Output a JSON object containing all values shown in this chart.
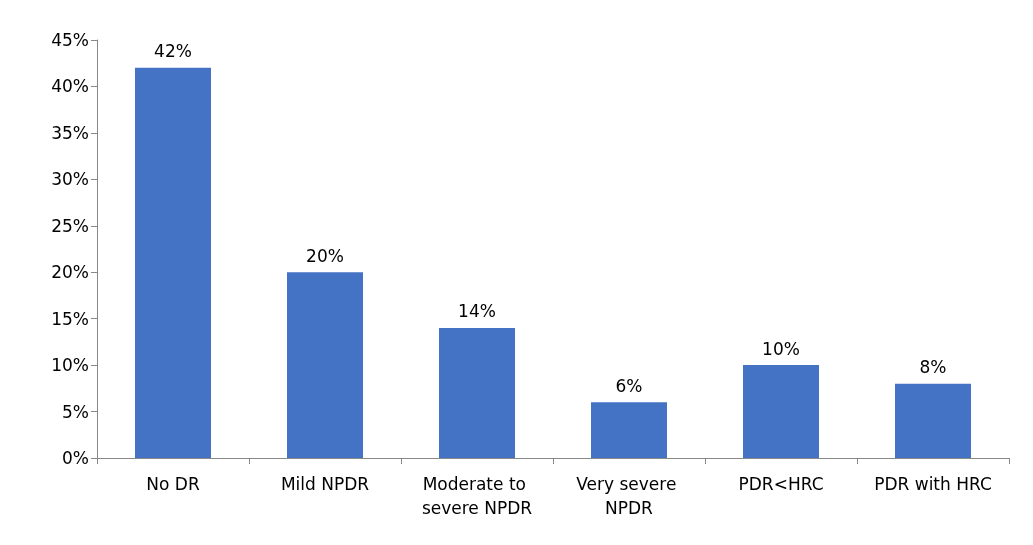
{
  "chart_data": {
    "type": "bar",
    "categories": [
      "No DR",
      "Mild NPDR",
      "Moderate to severe NPDR",
      "Very severe NPDR",
      "PDR<HRC",
      "PDR with HRC"
    ],
    "values": [
      42,
      20,
      14,
      6,
      10,
      8
    ],
    "value_labels": [
      "42%",
      "20%",
      "14%",
      "6%",
      "10%",
      "8%"
    ],
    "color": "#4472c4",
    "ylim": [
      0,
      45
    ],
    "yticks": [
      {
        "value": 0,
        "label": "0%"
      },
      {
        "value": 5,
        "label": "5%"
      },
      {
        "value": 10,
        "label": "10%"
      },
      {
        "value": 15,
        "label": "15%"
      },
      {
        "value": 20,
        "label": "20%"
      },
      {
        "value": 25,
        "label": "25%"
      },
      {
        "value": 30,
        "label": "30%"
      },
      {
        "value": 35,
        "label": "35%"
      },
      {
        "value": 40,
        "label": "40%"
      },
      {
        "value": 45,
        "label": "45%"
      }
    ],
    "grid": false
  }
}
